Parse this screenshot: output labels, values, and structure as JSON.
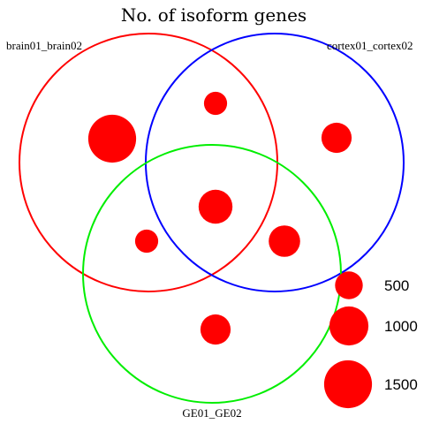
{
  "diagram": {
    "title": "No. of isoform genes",
    "sets": [
      {
        "id": "brain",
        "label": "brain01_brain02",
        "color": "#ff0000"
      },
      {
        "id": "cortex",
        "label": "cortex01_cortex02",
        "color": "#0000ff"
      },
      {
        "id": "ge",
        "label": "GE01_GE02",
        "color": "#00ee00"
      }
    ],
    "marker_color": "#ff0000",
    "regions": [
      {
        "sets": [
          "brain"
        ],
        "value": 1500
      },
      {
        "sets": [
          "brain",
          "cortex"
        ],
        "value": 350
      },
      {
        "sets": [
          "cortex"
        ],
        "value": 600
      },
      {
        "sets": [
          "brain",
          "cortex",
          "ge"
        ],
        "value": 750
      },
      {
        "sets": [
          "brain",
          "ge"
        ],
        "value": 350
      },
      {
        "sets": [
          "cortex",
          "ge"
        ],
        "value": 650
      },
      {
        "sets": [
          "ge"
        ],
        "value": 600
      }
    ],
    "legend": [
      {
        "label": "500",
        "value": 500
      },
      {
        "label": "1000",
        "value": 1000
      },
      {
        "label": "1500",
        "value": 1500
      }
    ]
  }
}
